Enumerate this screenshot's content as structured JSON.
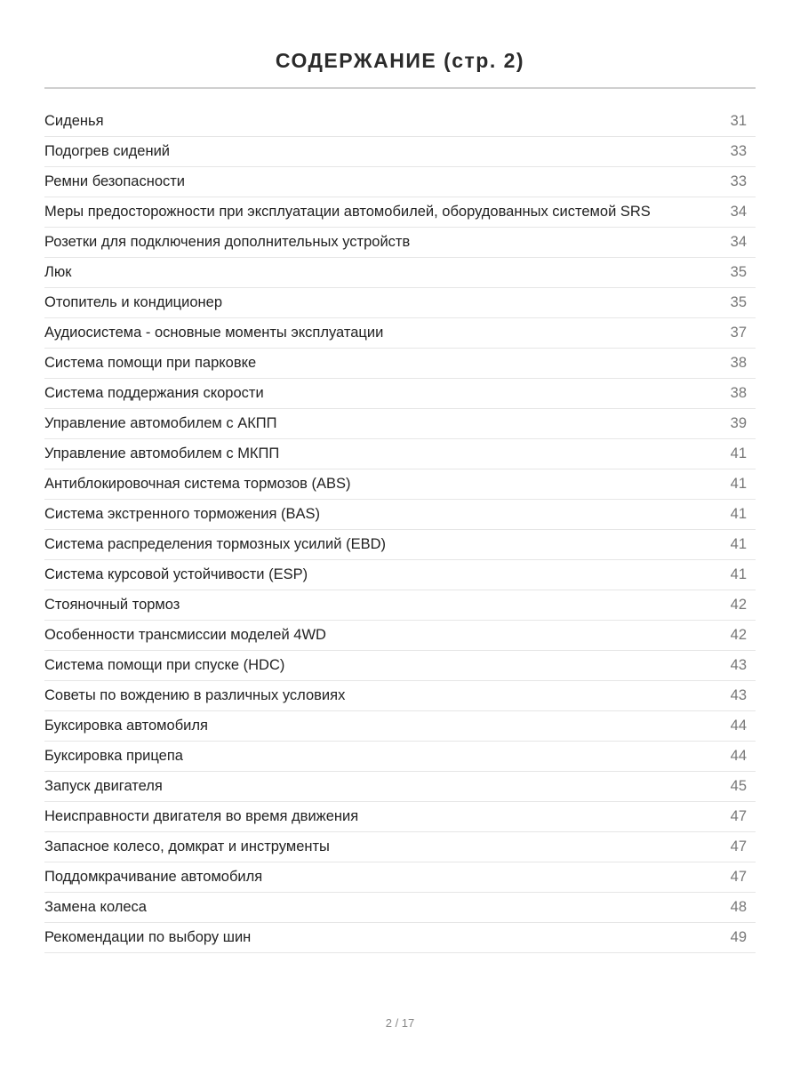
{
  "title": "СОДЕРЖАНИЕ (стр. 2)",
  "entries": [
    {
      "label": "Сиденья",
      "page": "31"
    },
    {
      "label": "Подогрев сидений",
      "page": "33"
    },
    {
      "label": "Ремни безопасности",
      "page": "33"
    },
    {
      "label": "Меры предосторожности при эксплуатации автомобилей, оборудованных системой SRS",
      "page": "34"
    },
    {
      "label": "Розетки для подключения дополнительных устройств",
      "page": "34"
    },
    {
      "label": "Люк",
      "page": "35"
    },
    {
      "label": "Отопитель и кондиционер",
      "page": "35"
    },
    {
      "label": "Аудиосистема - основные моменты эксплуатации",
      "page": "37"
    },
    {
      "label": "Система помощи при парковке",
      "page": "38"
    },
    {
      "label": "Система поддержания скорости",
      "page": "38"
    },
    {
      "label": "Управление автомобилем с АКПП",
      "page": "39"
    },
    {
      "label": "Управление автомобилем с МКПП",
      "page": "41"
    },
    {
      "label": "Антиблокировочная система тормозов (ABS)",
      "page": "41"
    },
    {
      "label": "Система экстренного торможения (BAS)",
      "page": "41"
    },
    {
      "label": "Система распределения тормозных усилий (EBD)",
      "page": "41"
    },
    {
      "label": "Система курсовой устойчивости (ESP)",
      "page": "41"
    },
    {
      "label": "Стояночный тормоз",
      "page": "42"
    },
    {
      "label": "Особенности трансмиссии моделей 4WD",
      "page": "42"
    },
    {
      "label": "Система помощи при спуске (HDC)",
      "page": "43"
    },
    {
      "label": "Советы по вождению в различных условиях",
      "page": "43"
    },
    {
      "label": "Буксировка автомобиля",
      "page": "44"
    },
    {
      "label": "Буксировка прицепа",
      "page": "44"
    },
    {
      "label": "Запуск двигателя",
      "page": "45"
    },
    {
      "label": "Неисправности двигателя во время движения",
      "page": "47"
    },
    {
      "label": "Запасное колесо, домкрат и инструменты",
      "page": "47"
    },
    {
      "label": "Поддомкрачивание автомобиля",
      "page": "47"
    },
    {
      "label": "Замена колеса",
      "page": "48"
    },
    {
      "label": "Рекомендации по выбору шин",
      "page": "49"
    }
  ],
  "footer": {
    "page_indicator": "2 / 17"
  }
}
